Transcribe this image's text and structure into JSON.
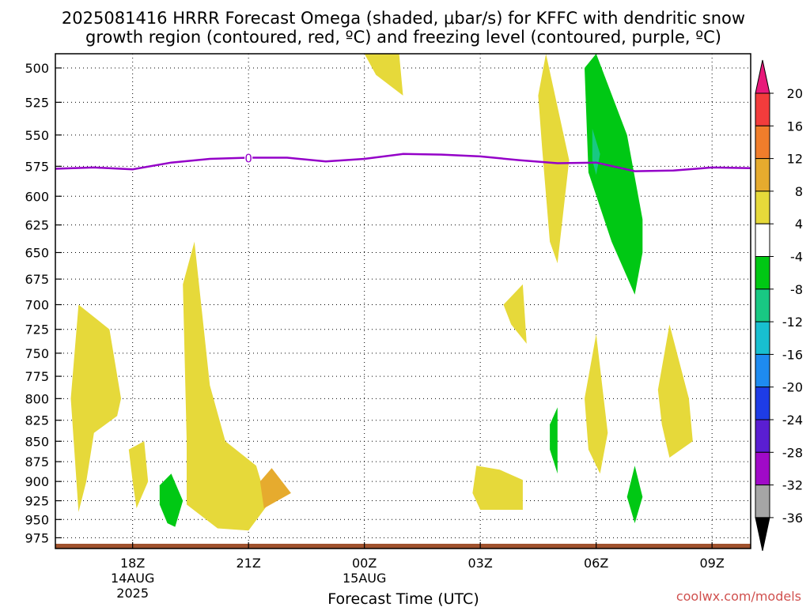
{
  "title_line1": "2025081416 HRRR Forecast Omega (shaded, μbar/s) for KFFC with dendritic snow",
  "title_line2": "growth region (contoured, red, ºC) and freezing level (contoured, purple, ºC)",
  "credit": "coolwx.com/models",
  "chart_data": {
    "type": "area",
    "title": "2025081416 HRRR Forecast Omega (shaded, μbar/s) for KFFC with dendritic snow growth region (contoured, red, ºC) and freezing level (contoured, purple, ºC)",
    "xlabel": "Forecast Time (UTC)",
    "ylabel": "",
    "x_ticks": [
      {
        "hour": 18,
        "label": "18Z",
        "sub1": "14AUG",
        "sub2": "2025"
      },
      {
        "hour": 21,
        "label": "21Z",
        "sub1": "",
        "sub2": ""
      },
      {
        "hour": 24,
        "label": "00Z",
        "sub1": "15AUG",
        "sub2": ""
      },
      {
        "hour": 27,
        "label": "03Z",
        "sub1": "",
        "sub2": ""
      },
      {
        "hour": 30,
        "label": "06Z",
        "sub1": "",
        "sub2": ""
      },
      {
        "hour": 33,
        "label": "09Z",
        "sub1": "",
        "sub2": ""
      }
    ],
    "xlim": [
      16,
      34
    ],
    "y_ticks": [
      500,
      525,
      550,
      575,
      600,
      625,
      650,
      675,
      700,
      725,
      750,
      775,
      800,
      825,
      850,
      875,
      900,
      925,
      950,
      975
    ],
    "ylim": [
      990,
      490
    ],
    "y_scale": "log",
    "grid": true,
    "colorbar": {
      "labels": [
        "20",
        "16",
        "12",
        "8",
        "4",
        "-4",
        "-8",
        "-12",
        "-16",
        "-20",
        "-24",
        "-28",
        "-32",
        "-36"
      ],
      "colors": [
        "#e8197a",
        "#f23c3c",
        "#f07d2b",
        "#e6ab2e",
        "#e6d93a",
        "#ffffff",
        "#00c814",
        "#19c883",
        "#18bfd0",
        "#1e8bf0",
        "#1e3ce6",
        "#5a1ed2",
        "#a00ac8",
        "#a6a6a6",
        "#000000"
      ]
    },
    "freezing_level": {
      "label": "0",
      "color": "#9400c8",
      "points": [
        [
          16,
          577
        ],
        [
          17,
          576
        ],
        [
          18,
          577.5
        ],
        [
          19,
          572
        ],
        [
          20,
          569
        ],
        [
          21,
          568
        ],
        [
          22,
          568
        ],
        [
          23,
          571
        ],
        [
          24,
          569
        ],
        [
          25,
          565
        ],
        [
          26,
          565.5
        ],
        [
          27,
          567
        ],
        [
          28,
          570
        ],
        [
          29,
          572.5
        ],
        [
          30,
          572
        ],
        [
          31,
          579
        ],
        [
          32,
          578.5
        ],
        [
          33,
          576
        ],
        [
          34,
          576.5
        ]
      ]
    },
    "surface_color": "#a0522d",
    "omega_regions": [
      {
        "level": 4,
        "color": "#e6d93a",
        "points": [
          [
            16.6,
            940
          ],
          [
            16.4,
            800
          ],
          [
            16.6,
            700
          ],
          [
            17.4,
            725
          ],
          [
            17.7,
            800
          ],
          [
            17.6,
            820
          ],
          [
            17.0,
            840
          ],
          [
            16.8,
            900
          ]
        ]
      },
      {
        "level": 4,
        "color": "#e6d93a",
        "points": [
          [
            17.9,
            860
          ],
          [
            18.3,
            850
          ],
          [
            18.4,
            900
          ],
          [
            18.1,
            935
          ],
          [
            18.0,
            900
          ]
        ]
      },
      {
        "level": 4,
        "color": "#e6d93a",
        "points": [
          [
            19.4,
            850
          ],
          [
            19.3,
            680
          ],
          [
            19.6,
            640
          ],
          [
            20.0,
            785
          ],
          [
            20.4,
            850
          ],
          [
            21.2,
            880
          ],
          [
            21.5,
            930
          ],
          [
            21.0,
            965
          ],
          [
            20.2,
            962
          ],
          [
            19.4,
            930
          ]
        ]
      },
      {
        "level": 4,
        "color": "#e6d93a",
        "points": [
          [
            24.0,
            490
          ],
          [
            24.9,
            490
          ],
          [
            25.0,
            520
          ],
          [
            24.3,
            505
          ]
        ]
      },
      {
        "level": 4,
        "color": "#e6d93a",
        "points": [
          [
            26.9,
            880
          ],
          [
            27.5,
            885
          ],
          [
            28.1,
            898
          ],
          [
            28.1,
            937
          ],
          [
            27.0,
            937
          ],
          [
            26.8,
            915
          ]
        ]
      },
      {
        "level": 4,
        "color": "#e6d93a",
        "points": [
          [
            27.6,
            700
          ],
          [
            28.1,
            680
          ],
          [
            28.2,
            740
          ],
          [
            27.8,
            720
          ]
        ]
      },
      {
        "level": 4,
        "color": "#e6d93a",
        "points": [
          [
            28.5,
            520
          ],
          [
            28.7,
            490
          ],
          [
            29.3,
            570
          ],
          [
            29.0,
            660
          ],
          [
            28.8,
            640
          ],
          [
            28.6,
            560
          ]
        ]
      },
      {
        "level": 4,
        "color": "#e6d93a",
        "points": [
          [
            29.7,
            800
          ],
          [
            30.0,
            730
          ],
          [
            30.3,
            840
          ],
          [
            30.1,
            890
          ],
          [
            29.8,
            860
          ]
        ]
      },
      {
        "level": 4,
        "color": "#e6d93a",
        "points": [
          [
            31.6,
            790
          ],
          [
            31.9,
            720
          ],
          [
            32.4,
            800
          ],
          [
            32.5,
            850
          ],
          [
            31.9,
            870
          ],
          [
            31.7,
            830
          ]
        ]
      },
      {
        "level": 8,
        "color": "#e6ab2e",
        "points": [
          [
            21.3,
            900
          ],
          [
            21.6,
            883
          ],
          [
            22.1,
            915
          ],
          [
            21.4,
            935
          ]
        ]
      },
      {
        "level": -4,
        "color": "#00c814",
        "points": [
          [
            18.7,
            905
          ],
          [
            19.0,
            890
          ],
          [
            19.3,
            925
          ],
          [
            19.1,
            960
          ],
          [
            18.9,
            955
          ],
          [
            18.7,
            930
          ]
        ]
      },
      {
        "level": -4,
        "color": "#00c814",
        "points": [
          [
            28.8,
            830
          ],
          [
            29.0,
            810
          ],
          [
            29.0,
            890
          ],
          [
            28.8,
            860
          ]
        ]
      },
      {
        "level": -4,
        "color": "#00c814",
        "points": [
          [
            29.7,
            500
          ],
          [
            30.0,
            490
          ],
          [
            30.8,
            550
          ],
          [
            31.2,
            620
          ],
          [
            31.2,
            650
          ],
          [
            31.0,
            690
          ],
          [
            30.4,
            640
          ],
          [
            29.8,
            580
          ]
        ]
      },
      {
        "level": -4,
        "color": "#00c814",
        "points": [
          [
            30.8,
            920
          ],
          [
            31.0,
            880
          ],
          [
            31.2,
            920
          ],
          [
            31.0,
            955
          ]
        ]
      },
      {
        "level": -12,
        "color": "#19c883",
        "points": [
          [
            29.9,
            545
          ],
          [
            30.1,
            565
          ],
          [
            30.0,
            582
          ],
          [
            29.9,
            570
          ]
        ]
      }
    ]
  }
}
